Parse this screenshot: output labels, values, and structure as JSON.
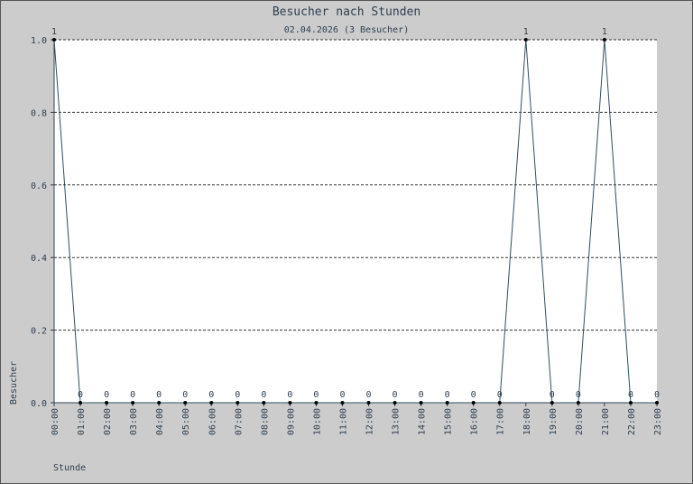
{
  "chart_data": {
    "type": "line",
    "title": "Besucher nach Stunden",
    "subtitle": "02.04.2026 (3 Besucher)",
    "x_label": "Stunde",
    "y_label": "Besucher",
    "categories": [
      "00:00",
      "01:00",
      "02:00",
      "03:00",
      "04:00",
      "05:00",
      "06:00",
      "07:00",
      "08:00",
      "09:00",
      "10:00",
      "11:00",
      "12:00",
      "13:00",
      "14:00",
      "15:00",
      "16:00",
      "17:00",
      "18:00",
      "19:00",
      "20:00",
      "21:00",
      "22:00",
      "23:00"
    ],
    "series": [
      {
        "name": "Besucher",
        "color": "#2f4f5f",
        "values": [
          1,
          0,
          0,
          0,
          0,
          0,
          0,
          0,
          0,
          0,
          0,
          0,
          0,
          0,
          0,
          0,
          0,
          0,
          1,
          0,
          0,
          1,
          0,
          0
        ]
      }
    ],
    "ylim": [
      0,
      1
    ],
    "yticks": [
      {
        "value": 0,
        "label": "0.0"
      },
      0.2,
      0.4,
      0.6,
      0.8,
      {
        "value": 1,
        "label": "1.0"
      }
    ],
    "grid": true
  }
}
